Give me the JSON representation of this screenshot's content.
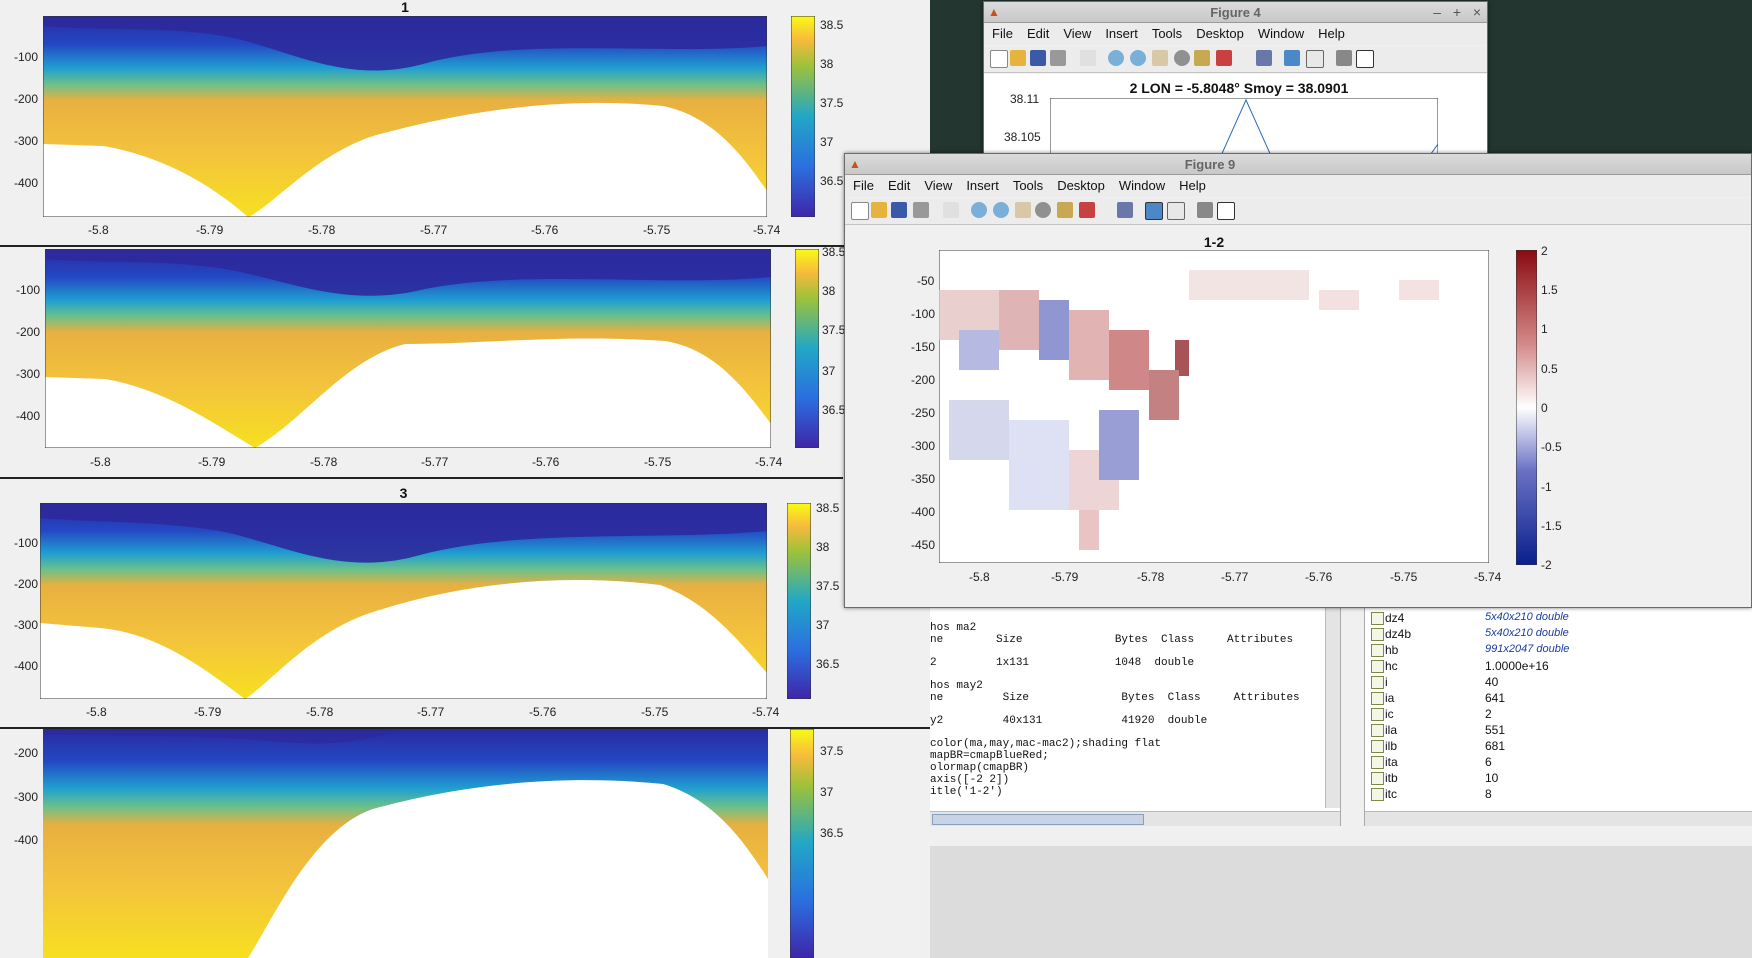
{
  "colors": {
    "desktop": "#2a3a34",
    "figure_bg": "#f0f0f0",
    "parula_low": "#3e26a8",
    "parula_mid": "#21a7c6",
    "parula_high": "#f9fb15",
    "bluered_neg": "#0a1f8c",
    "bluered_pos": "#8a0a10"
  },
  "main": {
    "plots": [
      {
        "title": "1",
        "yticks": [
          "-100",
          "-200",
          "-300",
          "-400"
        ],
        "xticks": [
          "-5.8",
          "-5.79",
          "-5.78",
          "-5.77",
          "-5.76",
          "-5.75",
          "-5.74"
        ],
        "cbar_ticks": [
          "38.5",
          "38",
          "37.5",
          "37",
          "36.5"
        ]
      },
      {
        "title": "",
        "yticks": [
          "-100",
          "-200",
          "-300",
          "-400"
        ],
        "xticks": [
          "-5.8",
          "-5.79",
          "-5.78",
          "-5.77",
          "-5.76",
          "-5.75",
          "-5.74"
        ],
        "cbar_ticks": [
          "38.5",
          "38",
          "37.5",
          "37",
          "36.5"
        ]
      },
      {
        "title": "3",
        "yticks": [
          "-100",
          "-200",
          "-300",
          "-400"
        ],
        "xticks": [
          "-5.8",
          "-5.79",
          "-5.78",
          "-5.77",
          "-5.76",
          "-5.75",
          "-5.74"
        ],
        "cbar_ticks": [
          "38.5",
          "38",
          "37.5",
          "37",
          "36.5"
        ]
      },
      {
        "title": "",
        "yticks": [
          "-200",
          "-300",
          "-400"
        ],
        "xticks": [],
        "cbar_ticks": [
          "37.5",
          "37",
          "36.5"
        ]
      }
    ]
  },
  "figure4": {
    "window_title": "Figure 4",
    "menu": [
      "File",
      "Edit",
      "View",
      "Insert",
      "Tools",
      "Desktop",
      "Window",
      "Help"
    ],
    "plot_title": "2  LON = -5.8048°  Smoy = 38.0901",
    "yticks": [
      "38.11",
      "38.105"
    ]
  },
  "figure9": {
    "window_title": "Figure 9",
    "menu": [
      "File",
      "Edit",
      "View",
      "Insert",
      "Tools",
      "Desktop",
      "Window",
      "Help"
    ],
    "plot_title": "1-2",
    "yticks": [
      "-50",
      "-100",
      "-150",
      "-200",
      "-250",
      "-300",
      "-350",
      "-400",
      "-450"
    ],
    "xticks": [
      "-5.8",
      "-5.79",
      "-5.78",
      "-5.77",
      "-5.76",
      "-5.75",
      "-5.74"
    ],
    "cbar_ticks": [
      "2",
      "1.5",
      "1",
      "0.5",
      "0",
      "-0.5",
      "-1",
      "-1.5",
      "-2"
    ]
  },
  "command_window": {
    "lines": [
      "hos ma2",
      "ne        Size              Bytes  Class     Attributes",
      "",
      "2         1x131             1048  double",
      "",
      "hos may2",
      "ne         Size              Bytes  Class     Attributes",
      "",
      "y2         40x131            41920  double",
      "",
      "color(ma,may,mac-mac2);shading flat",
      "mapBR=cmapBlueRed;",
      "olormap(cmapBR)",
      "axis([-2 2])",
      "itle('1-2')"
    ]
  },
  "workspace": [
    {
      "name": "dz4",
      "value": "5x40x210 double"
    },
    {
      "name": "dz4b",
      "value": "5x40x210 double"
    },
    {
      "name": "hb",
      "value": "991x2047 double"
    },
    {
      "name": "hc",
      "value": "1.0000e+16"
    },
    {
      "name": "i",
      "value": "40"
    },
    {
      "name": "ia",
      "value": "641"
    },
    {
      "name": "ic",
      "value": "2"
    },
    {
      "name": "ila",
      "value": "551"
    },
    {
      "name": "ilb",
      "value": "681"
    },
    {
      "name": "ita",
      "value": "6"
    },
    {
      "name": "itb",
      "value": "10"
    },
    {
      "name": "itc",
      "value": "8"
    }
  ]
}
